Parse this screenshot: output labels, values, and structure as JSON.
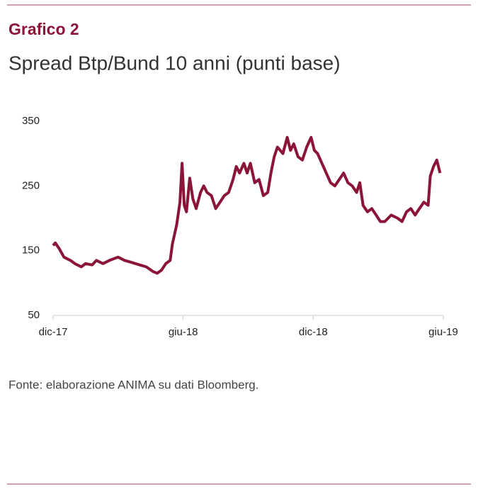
{
  "chart_data": {
    "type": "line",
    "title": "Grafico 2",
    "subtitle": "Spread Btp/Bund 10 anni (punti base)",
    "source": "Fonte: elaborazione ANIMA su dati Bloomberg.",
    "color": "#8b1538",
    "x": [
      0,
      0.1,
      0.3,
      0.5,
      0.8,
      1.0,
      1.3,
      1.5,
      1.8,
      2.0,
      2.3,
      2.6,
      3.0,
      3.3,
      3.6,
      4.0,
      4.3,
      4.6,
      4.8,
      5.0,
      5.2,
      5.4,
      5.5,
      5.7,
      5.85,
      5.95,
      6.05,
      6.15,
      6.3,
      6.45,
      6.6,
      6.8,
      6.95,
      7.1,
      7.3,
      7.5,
      7.7,
      7.9,
      8.1,
      8.3,
      8.45,
      8.6,
      8.8,
      8.95,
      9.1,
      9.3,
      9.5,
      9.7,
      9.9,
      10.05,
      10.2,
      10.35,
      10.6,
      10.8,
      10.95,
      11.1,
      11.3,
      11.5,
      11.7,
      11.9,
      12.05,
      12.2,
      12.4,
      12.6,
      12.8,
      13.0,
      13.2,
      13.4,
      13.6,
      13.8,
      14.0,
      14.15,
      14.3,
      14.5,
      14.7,
      14.9,
      15.1,
      15.3,
      15.6,
      15.9,
      16.1,
      16.3,
      16.5,
      16.7,
      16.9,
      17.1,
      17.3,
      17.4,
      17.55,
      17.7,
      17.85
    ],
    "values": [
      158,
      162,
      152,
      140,
      135,
      130,
      125,
      130,
      128,
      135,
      130,
      135,
      140,
      135,
      132,
      128,
      125,
      118,
      115,
      120,
      130,
      135,
      160,
      190,
      225,
      285,
      220,
      210,
      262,
      230,
      215,
      240,
      250,
      240,
      235,
      215,
      225,
      235,
      240,
      260,
      280,
      270,
      285,
      270,
      285,
      255,
      260,
      235,
      240,
      270,
      295,
      310,
      300,
      325,
      305,
      315,
      295,
      290,
      310,
      325,
      305,
      300,
      285,
      270,
      255,
      250,
      260,
      270,
      255,
      250,
      240,
      255,
      220,
      210,
      215,
      205,
      195,
      195,
      205,
      200,
      195,
      210,
      215,
      205,
      215,
      225,
      220,
      265,
      280,
      290,
      270
    ],
    "xlim": [
      0,
      18
    ],
    "xticks": [
      {
        "value": 0,
        "label": "dic-17"
      },
      {
        "value": 6,
        "label": "giu-18"
      },
      {
        "value": 12,
        "label": "dic-18"
      },
      {
        "value": 18,
        "label": "giu-19"
      }
    ],
    "ylim": [
      50,
      350
    ],
    "yticks": [
      50,
      150,
      250,
      350
    ]
  }
}
